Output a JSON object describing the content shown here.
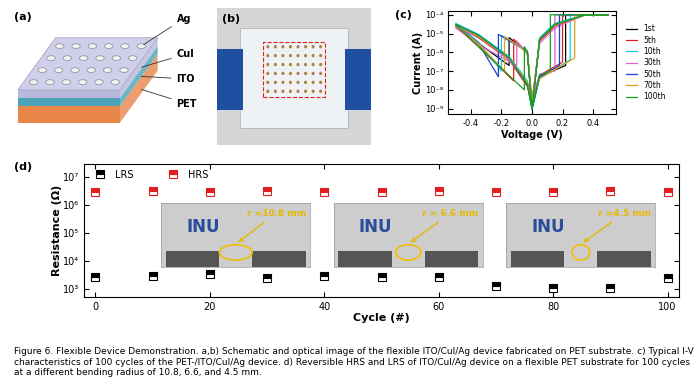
{
  "figure": {
    "panels": [
      {
        "panel": "(a)",
        "layers": [
          "Ag",
          "CuI",
          "ITO",
          "PET"
        ]
      },
      {
        "panel": "(b)"
      }
    ],
    "caption": "Figure 6. Flexible Device Demonstration. a,b) Schematic and optical image of the flexible ITO/CuI/Ag device fabricated on PET substrate. c) Typical I-V characteristics of 100 cycles of the PET-/ITO/CuI/Ag device. d) Reversible HRS and LRS of ITO/CuI/Ag device on a flexible PET substrate for 100 cycles at a different bending radius of 10.8, 6.6, and 4.5 mm."
  },
  "chart_data": [
    {
      "type": "line",
      "panel": "(c)",
      "x_label": "Voltage (V)",
      "y_label": "Current (A)",
      "log": "y",
      "legend": "right",
      "xlim": [
        -0.55,
        0.55
      ],
      "xticks": [
        -0.4,
        -0.2,
        0.0,
        0.2,
        0.4
      ],
      "ylim": [
        5e-10,
        0.00015
      ],
      "yticks": [
        {
          "value": 1e-09,
          "label": "10⁻⁹"
        },
        {
          "value": 1e-08,
          "label": "10⁻⁸"
        },
        {
          "value": 1e-07,
          "label": "10⁻⁷"
        },
        {
          "value": 1e-06,
          "label": "10⁻⁶"
        },
        {
          "value": 1e-05,
          "label": "10⁻⁵"
        },
        {
          "value": 0.0001,
          "label": "10⁻⁴"
        }
      ],
      "series": [
        {
          "name": "1st",
          "color": "#000000",
          "x": [
            0.0,
            0.05,
            0.22,
            0.22,
            0.35,
            0.5,
            0.35,
            0.15,
            0.05,
            0.0,
            -0.03,
            -0.15,
            -0.15,
            -0.35,
            -0.5,
            -0.35,
            -0.15,
            -0.03,
            0.0
          ],
          "values": [
            1e-09,
            5e-08,
            2e-07,
            0.0001,
            0.0001,
            0.0001,
            0.0001,
            3e-05,
            5e-06,
            1e-09,
            1e-06,
            6e-06,
            2e-07,
            3e-06,
            3e-05,
            8e-06,
            5e-07,
            2e-08,
            1e-09
          ]
        },
        {
          "name": "5th",
          "color": "#e02020",
          "x": [
            0.0,
            0.05,
            0.2,
            0.2,
            0.35,
            0.5,
            0.35,
            0.15,
            0.05,
            0.0,
            -0.03,
            -0.12,
            -0.12,
            -0.35,
            -0.5,
            -0.35,
            -0.15,
            -0.03,
            0.0
          ],
          "values": [
            2e-09,
            6e-08,
            3e-07,
            0.0001,
            0.0001,
            0.0001,
            0.0001,
            2.5e-05,
            4e-06,
            2e-09,
            8e-07,
            5e-06,
            3e-08,
            2e-06,
            2.5e-05,
            6e-06,
            4e-07,
            1.5e-08,
            2e-09
          ]
        },
        {
          "name": "10th",
          "color": "#1ec8e6",
          "x": [
            0.0,
            0.05,
            0.25,
            0.25,
            0.35,
            0.5,
            0.35,
            0.15,
            0.05,
            0.0,
            -0.03,
            -0.2,
            -0.2,
            -0.35,
            -0.5,
            -0.35,
            -0.15,
            -0.03,
            0.0
          ],
          "values": [
            1e-09,
            4e-08,
            4e-07,
            0.0001,
            0.0001,
            0.0001,
            0.0001,
            3.5e-05,
            6e-06,
            1e-09,
            1.2e-06,
            8e-06,
            1e-07,
            3.5e-06,
            3.5e-05,
            9e-06,
            6e-07,
            3e-08,
            1e-09
          ]
        },
        {
          "name": "30th",
          "color": "#e060d0",
          "x": [
            0.0,
            0.05,
            0.15,
            0.15,
            0.35,
            0.5,
            0.35,
            0.15,
            0.05,
            0.0,
            -0.03,
            -0.1,
            -0.1,
            -0.35,
            -0.5,
            -0.35,
            -0.15,
            -0.03,
            0.0
          ],
          "values": [
            3e-09,
            7e-08,
            1e-07,
            0.0001,
            0.0001,
            0.0001,
            0.0001,
            2e-05,
            3e-06,
            3e-09,
            9e-07,
            4e-06,
            2e-07,
            2.5e-06,
            2e-05,
            7e-06,
            4e-07,
            2e-08,
            3e-09
          ]
        },
        {
          "name": "50th",
          "color": "#1f3fd0",
          "x": [
            0.0,
            0.05,
            0.18,
            0.18,
            0.35,
            0.5,
            0.35,
            0.15,
            0.05,
            0.0,
            -0.03,
            -0.22,
            -0.22,
            -0.35,
            -0.5,
            -0.35,
            -0.15,
            -0.03,
            0.0
          ],
          "values": [
            1e-09,
            5e-08,
            2e-07,
            0.0001,
            0.0001,
            0.0001,
            0.0001,
            3e-05,
            5e-06,
            1e-09,
            1.1e-06,
            9e-06,
            5e-08,
            3e-06,
            3e-05,
            8e-06,
            5e-07,
            2e-08,
            1e-09
          ]
        },
        {
          "name": "70th",
          "color": "#d9a21b",
          "x": [
            0.0,
            0.05,
            0.28,
            0.28,
            0.35,
            0.5,
            0.35,
            0.15,
            0.05,
            0.0,
            -0.03,
            -0.18,
            -0.18,
            -0.35,
            -0.5,
            -0.35,
            -0.15,
            -0.03,
            0.0
          ],
          "values": [
            2e-09,
            4e-08,
            5e-07,
            0.0001,
            0.0001,
            0.0001,
            0.0001,
            2.8e-05,
            5e-06,
            2e-09,
            1e-06,
            7e-06,
            1e-07,
            2.8e-06,
            2.8e-05,
            7e-06,
            5e-07,
            2.5e-08,
            2e-09
          ]
        },
        {
          "name": "100th",
          "color": "#10a020",
          "x": [
            0.0,
            0.05,
            0.12,
            0.12,
            0.35,
            0.5,
            0.35,
            0.15,
            0.05,
            0.0,
            -0.03,
            -0.05,
            -0.05,
            -0.35,
            -0.5,
            -0.35,
            -0.15,
            -0.03,
            0.0
          ],
          "values": [
            1e-09,
            6e-08,
            1e-07,
            0.0001,
            0.0001,
            0.0001,
            0.0001,
            3e-05,
            5e-06,
            1e-09,
            1e-06,
            2e-06,
            1e-08,
            2e-06,
            3e-05,
            8e-06,
            5e-07,
            2e-08,
            1e-09
          ]
        }
      ]
    },
    {
      "type": "scatter",
      "panel": "(d)",
      "x_label": "Cycle (#)",
      "y_label": "Resistance (Ω)",
      "log": "y",
      "legend": "upper left",
      "xlim": [
        -2,
        102
      ],
      "xticks": [
        0,
        20,
        40,
        60,
        80,
        100
      ],
      "ylim": [
        500,
        30000000
      ],
      "yticks": [
        {
          "value": 1000,
          "label": "10³"
        },
        {
          "value": 10000,
          "label": "10⁴"
        },
        {
          "value": 100000,
          "label": "10⁵"
        },
        {
          "value": 1000000,
          "label": "10⁶"
        },
        {
          "value": 10000000,
          "label": "10⁷"
        }
      ],
      "x": [
        0,
        10,
        20,
        30,
        40,
        50,
        60,
        70,
        80,
        90,
        100
      ],
      "series": [
        {
          "name": "LRS",
          "color": "#000000",
          "marker": "square",
          "values": [
            2600,
            2800,
            3300,
            2400,
            2800,
            2600,
            2600,
            1300,
            1100,
            1100,
            2500
          ]
        },
        {
          "name": "HRS",
          "color": "#e02020",
          "marker": "square",
          "values": [
            3000000,
            3100000,
            3000000,
            3100000,
            3000000,
            3000000,
            3100000,
            3000000,
            3000000,
            3100000,
            3000000
          ]
        }
      ],
      "insets": [
        {
          "photo_text": "INU",
          "bending_radius": "r =10.8 mm"
        },
        {
          "photo_text": "INU",
          "bending_radius": "r = 6.6 mm"
        },
        {
          "photo_text": "INU",
          "bending_radius": "r =4.5 mm"
        }
      ]
    }
  ]
}
